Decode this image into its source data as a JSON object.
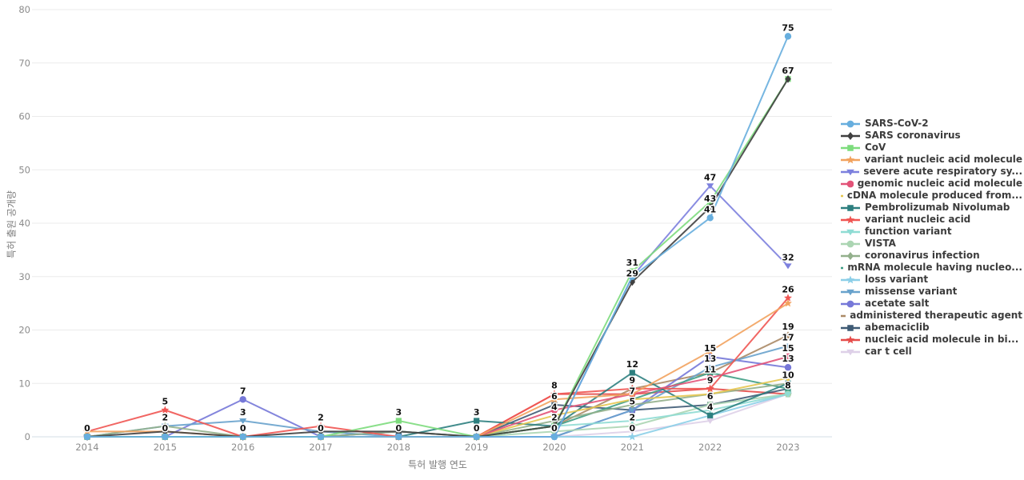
{
  "chart_data": {
    "type": "line",
    "title": "",
    "xlabel": "특허 발행 연도",
    "ylabel": "특허 출원 공개량",
    "x": [
      2014,
      2015,
      2016,
      2017,
      2018,
      2019,
      2020,
      2021,
      2022,
      2023
    ],
    "ylim": [
      0,
      80
    ],
    "yticks": [
      0,
      10,
      20,
      30,
      40,
      50,
      60,
      70,
      80
    ],
    "grid": "horizontal",
    "legend_position": "right",
    "series": [
      {
        "name": "SARS-CoV-2",
        "color": "#67aede",
        "shape": "circle",
        "values": [
          0,
          0,
          0,
          0,
          0,
          0,
          0,
          30,
          41,
          75
        ]
      },
      {
        "name": "SARS coronavirus",
        "color": "#404040",
        "shape": "diamond",
        "values": [
          0,
          1,
          0,
          1,
          1,
          0,
          2,
          29,
          43,
          67
        ]
      },
      {
        "name": "CoV",
        "color": "#7ddc7d",
        "shape": "square",
        "values": [
          0,
          0,
          0,
          0,
          3,
          0,
          2,
          31,
          44,
          67
        ]
      },
      {
        "name": "variant nucleic acid molecule",
        "color": "#f2a25e",
        "shape": "star",
        "values": [
          1,
          1,
          0,
          0,
          0,
          0,
          7,
          8,
          16,
          25
        ]
      },
      {
        "name": "severe acute respiratory sy...",
        "color": "#7c80de",
        "shape": "triangle-down",
        "values": [
          0,
          0,
          0,
          0,
          0,
          0,
          0,
          30,
          47,
          32
        ]
      },
      {
        "name": "genomic nucleic acid molecule",
        "color": "#e25378",
        "shape": "circle",
        "values": [
          0,
          0,
          0,
          0,
          0,
          0,
          5,
          8,
          11,
          15
        ]
      },
      {
        "name": "cDNA molecule produced from...",
        "color": "#e5c750",
        "shape": "diamond",
        "values": [
          0,
          0,
          0,
          0,
          0,
          0,
          4,
          7,
          8,
          11
        ]
      },
      {
        "name": "Pembrolizumab Nivolumab",
        "color": "#2d7f7f",
        "shape": "square",
        "values": [
          0,
          0,
          0,
          0,
          0,
          3,
          2,
          12,
          4,
          10
        ]
      },
      {
        "name": "variant nucleic acid",
        "color": "#f05552",
        "shape": "star",
        "values": [
          1,
          5,
          0,
          2,
          0,
          0,
          8,
          9,
          9,
          26
        ]
      },
      {
        "name": "function variant",
        "color": "#8fdcd4",
        "shape": "triangle-down",
        "values": [
          0,
          0,
          0,
          0,
          0,
          0,
          2,
          3,
          5,
          8
        ]
      },
      {
        "name": "VISTA",
        "color": "#abd5b2",
        "shape": "circle",
        "values": [
          0,
          0,
          0,
          0,
          0,
          0,
          1,
          2,
          6,
          8
        ]
      },
      {
        "name": "coronavirus infection",
        "color": "#93b08c",
        "shape": "diamond",
        "values": [
          0,
          2,
          0,
          0,
          1,
          0,
          3,
          6,
          8,
          10
        ]
      },
      {
        "name": "mRNA molecule having nucleo...",
        "color": "#3f9e85",
        "shape": "square",
        "values": [
          0,
          0,
          0,
          0,
          0,
          0,
          2,
          7,
          12,
          9
        ]
      },
      {
        "name": "loss variant",
        "color": "#8ccfe8",
        "shape": "star",
        "values": [
          0,
          0,
          0,
          0,
          0,
          0,
          0,
          0,
          4,
          8
        ]
      },
      {
        "name": "missense variant",
        "color": "#68a2cc",
        "shape": "triangle-down",
        "values": [
          0,
          2,
          3,
          1,
          0,
          0,
          0,
          5,
          13,
          17
        ]
      },
      {
        "name": "acetate salt",
        "color": "#7678d8",
        "shape": "circle",
        "values": [
          0,
          0,
          7,
          0,
          0,
          0,
          0,
          5,
          15,
          13
        ]
      },
      {
        "name": "administered therapeutic agent",
        "color": "#ab8a66",
        "shape": "diamond",
        "values": [
          0,
          0,
          0,
          0,
          0,
          0,
          2,
          9,
          12,
          19
        ]
      },
      {
        "name": "abemaciclib",
        "color": "#3f5b75",
        "shape": "square",
        "values": [
          0,
          0,
          0,
          0,
          1,
          0,
          6,
          5,
          6,
          9
        ]
      },
      {
        "name": "nucleic acid molecule in bi...",
        "color": "#e64c4a",
        "shape": "star",
        "values": [
          0,
          0,
          0,
          0,
          0,
          0,
          8,
          8,
          9,
          8
        ]
      },
      {
        "name": "car t cell",
        "color": "#ded0e8",
        "shape": "triangle-down",
        "values": [
          0,
          0,
          0,
          0,
          0,
          0,
          0,
          1,
          3,
          8
        ]
      }
    ],
    "point_labels": [
      {
        "series": "SARS-CoV-2",
        "year": 2014,
        "value": 0
      },
      {
        "series": "variant nucleic acid",
        "year": 2015,
        "value": 5
      },
      {
        "series": "missense variant",
        "year": 2015,
        "value": 2
      },
      {
        "series": "SARS-CoV-2",
        "year": 2015,
        "value": 0
      },
      {
        "series": "acetate salt",
        "year": 2016,
        "value": 7
      },
      {
        "series": "missense variant",
        "year": 2016,
        "value": 3
      },
      {
        "series": "SARS-CoV-2",
        "year": 2016,
        "value": 0
      },
      {
        "series": "variant nucleic acid",
        "year": 2017,
        "value": 2
      },
      {
        "series": "SARS-CoV-2",
        "year": 2017,
        "value": 0
      },
      {
        "series": "CoV",
        "year": 2018,
        "value": 3
      },
      {
        "series": "SARS-CoV-2",
        "year": 2018,
        "value": 0
      },
      {
        "series": "Pembrolizumab Nivolumab",
        "year": 2019,
        "value": 3
      },
      {
        "series": "SARS-CoV-2",
        "year": 2019,
        "value": 0
      },
      {
        "series": "nucleic acid molecule in bi...",
        "year": 2020,
        "value": 8
      },
      {
        "series": "abemaciclib",
        "year": 2020,
        "value": 6
      },
      {
        "series": "cDNA molecule produced from...",
        "year": 2020,
        "value": 4
      },
      {
        "series": "SARS coronavirus",
        "year": 2020,
        "value": 2
      },
      {
        "series": "severe acute respiratory sy...",
        "year": 2020,
        "value": 0
      },
      {
        "series": "CoV",
        "year": 2021,
        "value": 31
      },
      {
        "series": "SARS coronavirus",
        "year": 2021,
        "value": 29
      },
      {
        "series": "Pembrolizumab Nivolumab",
        "year": 2021,
        "value": 12
      },
      {
        "series": "administered therapeutic agent",
        "year": 2021,
        "value": 9
      },
      {
        "series": "cDNA molecule produced from...",
        "year": 2021,
        "value": 7
      },
      {
        "series": "abemaciclib",
        "year": 2021,
        "value": 5
      },
      {
        "series": "VISTA",
        "year": 2021,
        "value": 2
      },
      {
        "series": "loss variant",
        "year": 2021,
        "value": 0
      },
      {
        "series": "severe acute respiratory sy...",
        "year": 2022,
        "value": 47
      },
      {
        "series": "SARS coronavirus",
        "year": 2022,
        "value": 43
      },
      {
        "series": "SARS-CoV-2",
        "year": 2022,
        "value": 41
      },
      {
        "series": "acetate salt",
        "year": 2022,
        "value": 15
      },
      {
        "series": "missense variant",
        "year": 2022,
        "value": 13
      },
      {
        "series": "genomic nucleic acid molecule",
        "year": 2022,
        "value": 11
      },
      {
        "series": "variant nucleic acid",
        "year": 2022,
        "value": 9
      },
      {
        "series": "abemaciclib",
        "year": 2022,
        "value": 6
      },
      {
        "series": "Pembrolizumab Nivolumab",
        "year": 2022,
        "value": 4
      },
      {
        "series": "SARS-CoV-2",
        "year": 2023,
        "value": 75
      },
      {
        "series": "CoV",
        "year": 2023,
        "value": 67
      },
      {
        "series": "severe acute respiratory sy...",
        "year": 2023,
        "value": 32
      },
      {
        "series": "variant nucleic acid",
        "year": 2023,
        "value": 26
      },
      {
        "series": "administered therapeutic agent",
        "year": 2023,
        "value": 19
      },
      {
        "series": "missense variant",
        "year": 2023,
        "value": 17
      },
      {
        "series": "genomic nucleic acid molecule",
        "year": 2023,
        "value": 15
      },
      {
        "series": "acetate salt",
        "year": 2023,
        "value": 13
      },
      {
        "series": "Pembrolizumab Nivolumab",
        "year": 2023,
        "value": 10
      },
      {
        "series": "nucleic acid molecule in bi...",
        "year": 2023,
        "value": 8
      }
    ],
    "colors": {
      "gridline": "#ebebeb",
      "baseline": "#d3dce6",
      "tick_text": "#8c8c8c",
      "axis_title_text": "#7d7d7d",
      "point_label_text": "#111111"
    }
  }
}
